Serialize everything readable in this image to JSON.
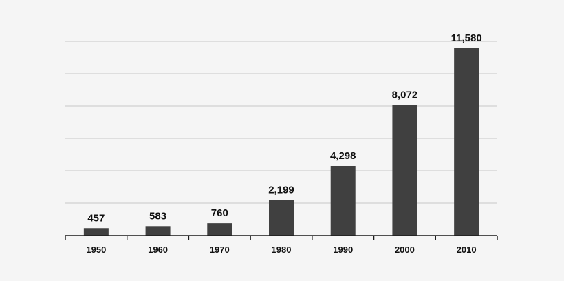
{
  "chart_data": {
    "type": "bar",
    "categories": [
      "1950",
      "1960",
      "1970",
      "1980",
      "1990",
      "2000",
      "2010"
    ],
    "values": [
      457,
      583,
      760,
      2199,
      4298,
      8072,
      11580
    ],
    "data_labels": [
      "457",
      "583",
      "760",
      "2,199",
      "4,298",
      "8,072",
      "11,580"
    ],
    "title": "",
    "xlabel": "",
    "ylabel": "",
    "ylim": [
      0,
      12000
    ],
    "y_grid_step": 2000,
    "grid": true,
    "legend": "none",
    "colors": {
      "bar": "#404040",
      "grid": "#c8c8c8",
      "axis": "#1a1a1a",
      "background": "#f5f5f5"
    }
  }
}
